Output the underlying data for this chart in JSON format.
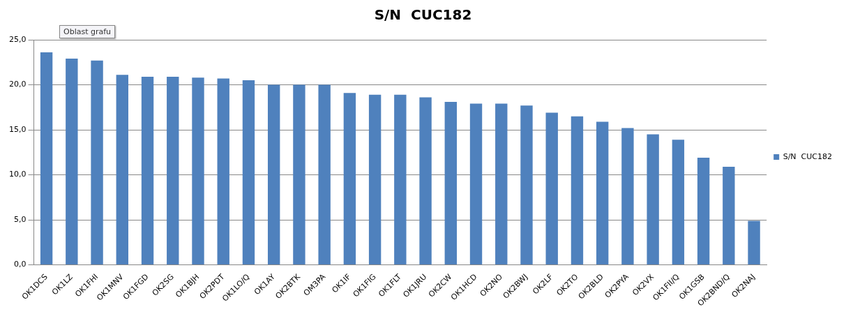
{
  "chart_data": {
    "type": "bar",
    "title": "S/N  CUC182",
    "annotations": [
      "Oblast grafu"
    ],
    "categories": [
      "OK1DCS",
      "OK1LZ",
      "OK1FHI",
      "OK1MNV",
      "OK1FGD",
      "OK2SG",
      "OK1BJH",
      "OK2PDT",
      "OK1LO/Q",
      "OK1AY",
      "OK2BTK",
      "OM3PA",
      "OK1IF",
      "OK1FIG",
      "OK1FLT",
      "OK1JRU",
      "OK2CW",
      "OK1HCD",
      "OK2NO",
      "OK2BWJ",
      "OK2LF",
      "OK2TO",
      "OK2BLD",
      "OK2PYA",
      "OK2VX",
      "OK1FII/Q",
      "OK1GSB",
      "OK2BND/Q",
      "OK2NAJ"
    ],
    "series": [
      {
        "name": "S/N  CUC182",
        "color": "#4f81bd",
        "values": [
          23.6,
          22.9,
          22.7,
          21.1,
          20.9,
          20.9,
          20.8,
          20.7,
          20.5,
          20.0,
          20.0,
          20.0,
          19.1,
          18.9,
          18.9,
          18.6,
          18.1,
          17.9,
          17.9,
          17.7,
          16.9,
          16.5,
          15.9,
          15.2,
          14.5,
          13.9,
          11.9,
          10.9,
          4.9
        ]
      }
    ],
    "ylim": [
      0,
      25
    ],
    "yticks": [
      {
        "value": 0,
        "label": "0,0"
      },
      {
        "value": 5,
        "label": "5,0"
      },
      {
        "value": 10,
        "label": "10,0"
      },
      {
        "value": 15,
        "label": "15,0"
      },
      {
        "value": 20,
        "label": "20,0"
      },
      {
        "value": 25,
        "label": "25,0"
      }
    ],
    "grid": "y",
    "legend": "right"
  }
}
